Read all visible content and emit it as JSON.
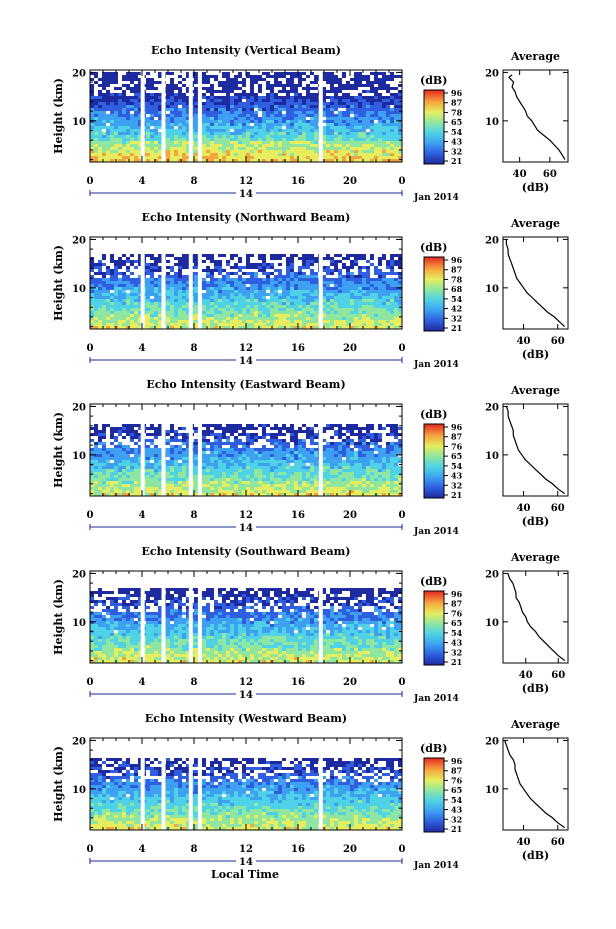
{
  "x_axis_label": "Local Time",
  "date_label": "Jan 2014",
  "chart_data": [
    {
      "type": "heatmap",
      "title": "Echo Intensity (Vertical Beam)",
      "ylabel": "Height (km)",
      "xlim": [
        0,
        24
      ],
      "x_ticks": [
        "0",
        "4",
        "8",
        "12",
        "16",
        "20",
        "0"
      ],
      "ylim": [
        1.5,
        20.5
      ],
      "y_ticks": [
        "20",
        "10"
      ],
      "day_label": "14",
      "colorbar": {
        "label": "(dB)",
        "ticks": [
          "96",
          "87",
          "78",
          "65",
          "54",
          "43",
          "32",
          "21"
        ]
      },
      "gaps_x": [
        3.9,
        5.5,
        7.6,
        8.3,
        17.6
      ],
      "data_ceiling_km": 19.5,
      "profile": {
        "title": "Average",
        "xlabel": "(dB)",
        "x_ticks": [
          "40",
          "60"
        ],
        "xlim": [
          29,
          72
        ],
        "y_ticks": [
          "20",
          "10"
        ],
        "height_km": [
          2,
          3,
          4,
          5,
          6,
          7,
          8,
          9,
          10,
          11,
          12,
          13,
          14,
          15,
          16,
          17,
          18,
          19,
          19.5
        ],
        "mean_db": [
          70,
          68,
          66,
          63,
          60,
          56,
          52,
          50,
          48,
          45,
          44,
          42,
          40,
          38,
          37,
          35,
          36,
          33,
          35
        ]
      }
    },
    {
      "type": "heatmap",
      "title": "Echo Intensity (Northward Beam)",
      "ylabel": "Height (km)",
      "xlim": [
        0,
        24
      ],
      "x_ticks": [
        "0",
        "4",
        "8",
        "12",
        "16",
        "20",
        "0"
      ],
      "ylim": [
        1.5,
        20.5
      ],
      "y_ticks": [
        "20",
        "10"
      ],
      "day_label": "14",
      "colorbar": {
        "label": "(dB)",
        "ticks": [
          "96",
          "87",
          "78",
          "68",
          "54",
          "42",
          "32",
          "21"
        ]
      },
      "gaps_x": [
        3.9,
        5.5,
        7.6,
        8.3,
        17.6
      ],
      "data_ceiling_km": 16.5,
      "profile": {
        "title": "Average",
        "xlabel": "(dB)",
        "x_ticks": [
          "40",
          "60"
        ],
        "xlim": [
          28,
          66
        ],
        "y_ticks": [
          "20",
          "10"
        ],
        "height_km": [
          2,
          3,
          4,
          5,
          6,
          7,
          8,
          9,
          10,
          11,
          12,
          13,
          14,
          15,
          16,
          17,
          18,
          19,
          20
        ],
        "mean_db": [
          64,
          61,
          58,
          54,
          51,
          48,
          45,
          42,
          40,
          38,
          36,
          35,
          34,
          33,
          32,
          31,
          31,
          30,
          30
        ]
      }
    },
    {
      "type": "heatmap",
      "title": "Echo Intensity (Eastward Beam)",
      "ylabel": "Height (km)",
      "xlim": [
        0,
        24
      ],
      "x_ticks": [
        "0",
        "4",
        "8",
        "12",
        "16",
        "20",
        "0"
      ],
      "ylim": [
        1.5,
        20.5
      ],
      "y_ticks": [
        "20",
        "10"
      ],
      "day_label": "14",
      "colorbar": {
        "label": "(dB)",
        "ticks": [
          "96",
          "87",
          "76",
          "65",
          "54",
          "43",
          "32",
          "21"
        ]
      },
      "gaps_x": [
        3.9,
        5.5,
        7.6,
        8.3,
        17.6
      ],
      "data_ceiling_km": 16.0,
      "profile": {
        "title": "Average",
        "xlabel": "(dB)",
        "x_ticks": [
          "40",
          "60"
        ],
        "xlim": [
          28,
          66
        ],
        "y_ticks": [
          "20",
          "10"
        ],
        "height_km": [
          2,
          3,
          4,
          5,
          6,
          7,
          8,
          9,
          10,
          11,
          12,
          13,
          14,
          15,
          16,
          17,
          18,
          19,
          20
        ],
        "mean_db": [
          64,
          60,
          57,
          53,
          50,
          47,
          44,
          41,
          39,
          37,
          36,
          35,
          34,
          34,
          33,
          32,
          31,
          31,
          30
        ]
      }
    },
    {
      "type": "heatmap",
      "title": "Echo Intensity (Southward Beam)",
      "ylabel": "Height (km)",
      "xlim": [
        0,
        24
      ],
      "x_ticks": [
        "0",
        "4",
        "8",
        "12",
        "16",
        "20",
        "0"
      ],
      "ylim": [
        1.5,
        20.5
      ],
      "y_ticks": [
        "20",
        "10"
      ],
      "day_label": "14",
      "colorbar": {
        "label": "(dB)",
        "ticks": [
          "96",
          "87",
          "76",
          "65",
          "54",
          "43",
          "32",
          "21"
        ]
      },
      "gaps_x": [
        3.9,
        5.5,
        7.6,
        8.3,
        17.6
      ],
      "data_ceiling_km": 16.5,
      "profile": {
        "title": "Average",
        "xlabel": "(dB)",
        "x_ticks": [
          "40",
          "60"
        ],
        "xlim": [
          26,
          66
        ],
        "y_ticks": [
          "20",
          "10"
        ],
        "height_km": [
          2,
          3,
          4,
          5,
          6,
          7,
          8,
          9,
          10,
          11,
          12,
          13,
          14,
          15,
          16,
          17,
          18,
          19,
          20
        ],
        "mean_db": [
          64,
          60,
          57,
          54,
          51,
          48,
          46,
          43,
          41,
          40,
          38,
          37,
          36,
          34,
          34,
          33,
          32,
          30,
          29
        ]
      }
    },
    {
      "type": "heatmap",
      "title": "Echo Intensity (Westward Beam)",
      "ylabel": "Height (km)",
      "xlim": [
        0,
        24
      ],
      "x_ticks": [
        "0",
        "4",
        "8",
        "12",
        "16",
        "20",
        "0"
      ],
      "ylim": [
        1.5,
        20.5
      ],
      "y_ticks": [
        "20",
        "10"
      ],
      "day_label": "14",
      "colorbar": {
        "label": "(dB)",
        "ticks": [
          "96",
          "87",
          "76",
          "65",
          "54",
          "43",
          "32",
          "21"
        ]
      },
      "gaps_x": [
        3.9,
        5.5,
        7.6,
        8.3,
        17.6
      ],
      "data_ceiling_km": 16.0,
      "profile": {
        "title": "Average",
        "xlabel": "(dB)",
        "x_ticks": [
          "40",
          "60"
        ],
        "xlim": [
          28,
          66
        ],
        "y_ticks": [
          "20",
          "10"
        ],
        "height_km": [
          2,
          3,
          4,
          5,
          6,
          7,
          8,
          9,
          10,
          11,
          12,
          13,
          14,
          15,
          16,
          17,
          18,
          19,
          20
        ],
        "mean_db": [
          64,
          60,
          57,
          53,
          50,
          47,
          44,
          42,
          40,
          38,
          37,
          36,
          35,
          35,
          34,
          32,
          31,
          30,
          29
        ]
      }
    }
  ]
}
